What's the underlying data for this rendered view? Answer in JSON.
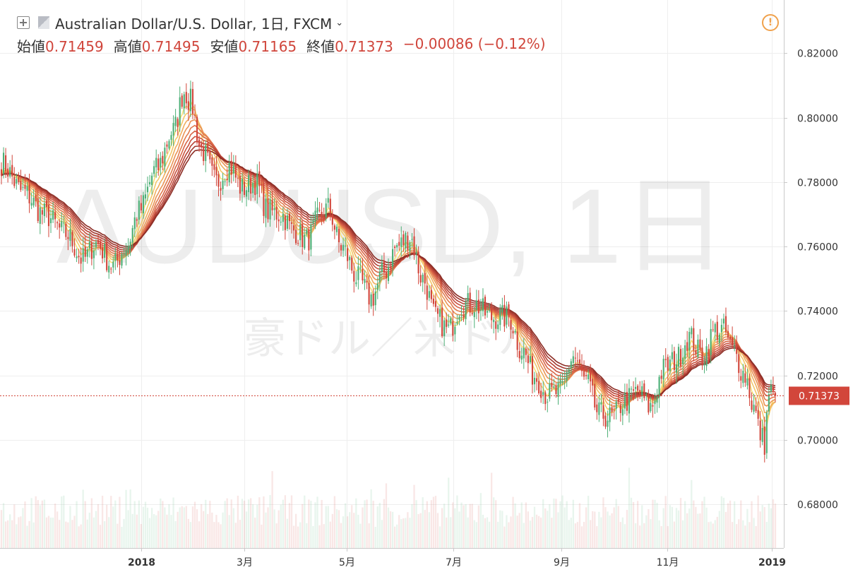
{
  "header": {
    "title": "Australian Dollar/U.S. Dollar, 1日, FXCM",
    "chevron": "⌄",
    "alert_glyph": "!",
    "open_label": "始値",
    "open_value": "0.71459",
    "high_label": "高値",
    "high_value": "0.71495",
    "low_label": "安値",
    "low_value": "0.71165",
    "close_label": "終値",
    "close_value": "0.71373",
    "change_value": "−0.00086 (−0.12%)"
  },
  "watermark": {
    "symbol": "AUDUSD, 1日",
    "description": "豪ドル／米ドル"
  },
  "colors": {
    "up": "#4caf76",
    "down": "#d2463b",
    "price_line": "#d2463b",
    "ribbon": [
      "#f7e07a",
      "#f3c86a",
      "#f0ae5e",
      "#ea9456",
      "#e27b4e",
      "#d86547",
      "#ca523f",
      "#b84336",
      "#a3372e",
      "#8c2d25"
    ]
  },
  "chart_data": {
    "type": "candlestick",
    "symbol": "AUDUSD",
    "timeframe": "1日",
    "x_labels": [
      "2018",
      "3月",
      "5月",
      "7月",
      "9月",
      "11月",
      "2019"
    ],
    "y_ticks": [
      "0.82000",
      "0.80000",
      "0.78000",
      "0.76000",
      "0.74000",
      "0.72000",
      "0.70000",
      "0.68000"
    ],
    "ylim": [
      0.6665,
      0.8365
    ],
    "last_price": "0.71373",
    "series_close": [
      [
        0,
        0.786
      ],
      [
        10,
        0.777
      ],
      [
        20,
        0.77
      ],
      [
        30,
        0.764
      ],
      [
        38,
        0.756
      ],
      [
        44,
        0.761
      ],
      [
        52,
        0.754
      ],
      [
        58,
        0.76
      ],
      [
        64,
        0.771
      ],
      [
        72,
        0.784
      ],
      [
        80,
        0.796
      ],
      [
        85,
        0.808
      ],
      [
        88,
        0.805
      ],
      [
        93,
        0.79
      ],
      [
        100,
        0.78
      ],
      [
        106,
        0.785
      ],
      [
        112,
        0.778
      ],
      [
        118,
        0.78
      ],
      [
        124,
        0.771
      ],
      [
        130,
        0.77
      ],
      [
        136,
        0.765
      ],
      [
        142,
        0.762
      ],
      [
        148,
        0.769
      ],
      [
        152,
        0.772
      ],
      [
        158,
        0.76
      ],
      [
        166,
        0.75
      ],
      [
        172,
        0.744
      ],
      [
        178,
        0.752
      ],
      [
        184,
        0.76
      ],
      [
        190,
        0.763
      ],
      [
        196,
        0.75
      ],
      [
        202,
        0.738
      ],
      [
        208,
        0.734
      ],
      [
        214,
        0.742
      ],
      [
        220,
        0.742
      ],
      [
        228,
        0.738
      ],
      [
        236,
        0.738
      ],
      [
        242,
        0.728
      ],
      [
        248,
        0.72
      ],
      [
        254,
        0.714
      ],
      [
        260,
        0.715
      ],
      [
        266,
        0.726
      ],
      [
        272,
        0.718
      ],
      [
        278,
        0.708
      ],
      [
        284,
        0.707
      ],
      [
        290,
        0.712
      ],
      [
        296,
        0.715
      ],
      [
        302,
        0.71
      ],
      [
        308,
        0.722
      ],
      [
        314,
        0.725
      ],
      [
        320,
        0.732
      ],
      [
        326,
        0.726
      ],
      [
        332,
        0.734
      ],
      [
        336,
        0.734
      ],
      [
        340,
        0.728
      ],
      [
        346,
        0.72
      ],
      [
        350,
        0.71
      ],
      [
        353,
        0.702
      ],
      [
        355,
        0.699
      ],
      [
        357,
        0.715
      ],
      [
        360,
        0.7137
      ]
    ],
    "ema_ribbon_periods": [
      5,
      8,
      11,
      14,
      17,
      20,
      23,
      26,
      29,
      32
    ]
  }
}
